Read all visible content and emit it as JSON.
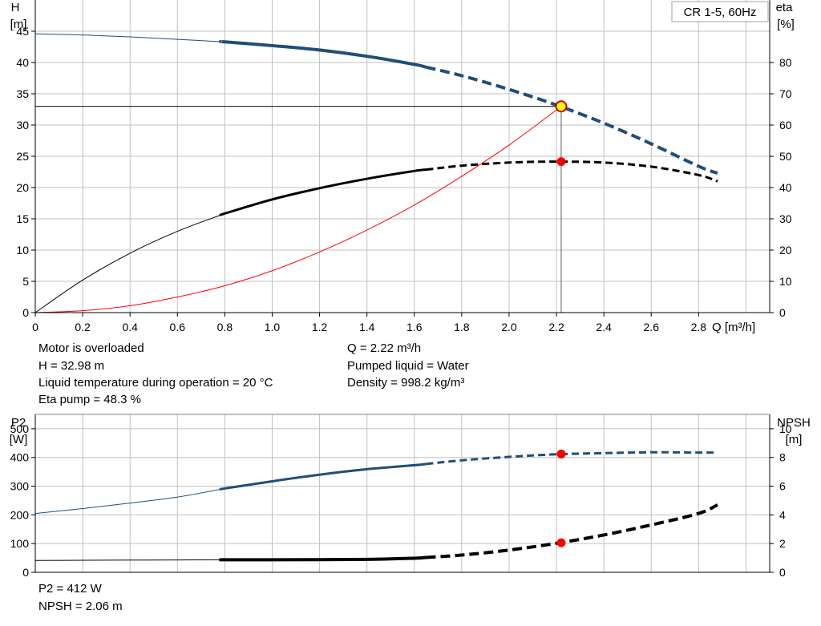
{
  "colors": {
    "head_curve": "#1f4e79",
    "eta_curve": "#000000",
    "system_curve": "#ff0000",
    "operating_point_fill": "#ffff00",
    "operating_point_stroke": "#cc0000",
    "marker": "#ff0000",
    "grid": "#c0c0c0"
  },
  "top": {
    "badge": "CR 1-5, 60Hz",
    "y_label_line1": "H",
    "y_label_line2": "[m]",
    "y2_label_line1": "eta",
    "y2_label_line2": "[%]",
    "x_label": "Q [m³/h]",
    "info_left": [
      "Motor is overloaded",
      "H = 32.98 m",
      "Liquid temperature during operation = 20 °C",
      "Eta pump = 48.3 %"
    ],
    "info_right": [
      "Q = 2.22 m³/h",
      "Pumped liquid = Water",
      "Density = 998.2 kg/m³"
    ]
  },
  "bottom": {
    "y_label_line1": "P2",
    "y_label_line2": "[W]",
    "y2_label_line1": "NPSH",
    "y2_label_line2": "[m]",
    "info": [
      "P2 = 412 W",
      "NPSH = 2.06 m"
    ]
  },
  "chart_data": [
    {
      "type": "line",
      "title": "CR 1-5, 60Hz",
      "xlabel": "Q [m³/h]",
      "ylabel": "H [m]",
      "y2label": "eta [%]",
      "xlim": [
        0,
        3.1
      ],
      "ylim": [
        0,
        50
      ],
      "y2lim": [
        0,
        100
      ],
      "x_ticks": [
        "0",
        "0.2",
        "0.4",
        "0.6",
        "0.8",
        "1.0",
        "1.2",
        "1.4",
        "1.6",
        "1.8",
        "2.0",
        "2.2",
        "2.4",
        "2.6",
        "2.8"
      ],
      "y_ticks": [
        "0",
        "5",
        "10",
        "15",
        "20",
        "25",
        "30",
        "35",
        "40",
        "45"
      ],
      "y2_ticks": [
        "0",
        "10",
        "20",
        "30",
        "40",
        "50",
        "60",
        "70",
        "80"
      ],
      "grid": true,
      "series": [
        {
          "key": "head",
          "axis": "y",
          "color_key": "head_curve",
          "thick": 4,
          "thin_until": 0.79,
          "dashed_from": 1.65,
          "x": [
            0,
            0.2,
            0.4,
            0.6,
            0.8,
            1.0,
            1.2,
            1.4,
            1.6,
            1.8,
            2.0,
            2.2,
            2.4,
            2.6,
            2.8,
            2.88
          ],
          "y": [
            44.6,
            44.4,
            44.1,
            43.7,
            43.3,
            42.7,
            42.0,
            41.0,
            39.7,
            37.9,
            35.7,
            33.2,
            30.3,
            27.0,
            23.4,
            22.3
          ]
        },
        {
          "key": "eta",
          "axis": "y2",
          "color_key": "eta_curve",
          "thick": 3,
          "thin_until": 0.79,
          "dashed_from": 1.65,
          "x": [
            0,
            0.2,
            0.4,
            0.6,
            0.8,
            1.0,
            1.2,
            1.4,
            1.6,
            1.8,
            2.0,
            2.2,
            2.4,
            2.6,
            2.8,
            2.88
          ],
          "y": [
            0,
            10.4,
            19.0,
            26.0,
            31.7,
            36.2,
            39.8,
            42.8,
            45.3,
            47.0,
            48.0,
            48.3,
            48.0,
            46.7,
            44.0,
            42.0
          ]
        },
        {
          "key": "system",
          "axis": "y",
          "color_key": "system_curve",
          "thick": 1,
          "thin_until": 9,
          "dashed_from": 9,
          "x": [
            0,
            0.2,
            0.4,
            0.6,
            0.8,
            1.0,
            1.2,
            1.4,
            1.6,
            1.8,
            2.0,
            2.22
          ],
          "y": [
            0,
            0.3,
            1.1,
            2.5,
            4.3,
            6.7,
            9.7,
            13.2,
            17.2,
            21.8,
            26.8,
            32.98
          ]
        }
      ],
      "operating_point": {
        "x": 2.22,
        "y": 32.98
      },
      "eta_marker": {
        "x": 2.22,
        "y": 48.3
      },
      "duty_line": {
        "x": 2.22,
        "y": 32.98
      }
    },
    {
      "type": "line",
      "ylabel": "P2 [W]",
      "y2label": "NPSH [m]",
      "xlim": [
        0,
        3.1
      ],
      "ylim": [
        0,
        550
      ],
      "y2lim": [
        0,
        11
      ],
      "y_ticks": [
        "0",
        "100",
        "200",
        "300",
        "400",
        "500"
      ],
      "y2_ticks": [
        "0",
        "2",
        "4",
        "6",
        "8",
        "10"
      ],
      "grid": true,
      "series": [
        {
          "key": "p2",
          "axis": "y",
          "color_key": "head_curve",
          "thick": 3,
          "thin_until": 0.79,
          "dashed_from": 1.65,
          "x": [
            0,
            0.2,
            0.4,
            0.6,
            0.8,
            1.0,
            1.2,
            1.4,
            1.6,
            1.8,
            2.0,
            2.2,
            2.4,
            2.6,
            2.8,
            2.88
          ],
          "y": [
            205,
            222,
            241,
            262,
            292,
            317,
            340,
            359,
            373,
            390,
            402,
            411,
            415,
            418,
            417,
            417
          ]
        },
        {
          "key": "npsh",
          "axis": "y2",
          "color_key": "eta_curve",
          "thick": 4,
          "thin_until": 0.79,
          "dashed_from": 1.65,
          "x": [
            0,
            0.2,
            0.4,
            0.6,
            0.8,
            1.0,
            1.2,
            1.4,
            1.6,
            1.8,
            2.0,
            2.2,
            2.4,
            2.6,
            2.8,
            2.88
          ],
          "y": [
            0.82,
            0.84,
            0.85,
            0.86,
            0.87,
            0.87,
            0.88,
            0.9,
            0.98,
            1.2,
            1.55,
            2.02,
            2.6,
            3.3,
            4.1,
            4.7
          ]
        }
      ],
      "markers": [
        {
          "x": 2.22,
          "y": 412,
          "axis": "y"
        },
        {
          "x": 2.22,
          "y": 2.06,
          "axis": "y2"
        }
      ]
    }
  ]
}
